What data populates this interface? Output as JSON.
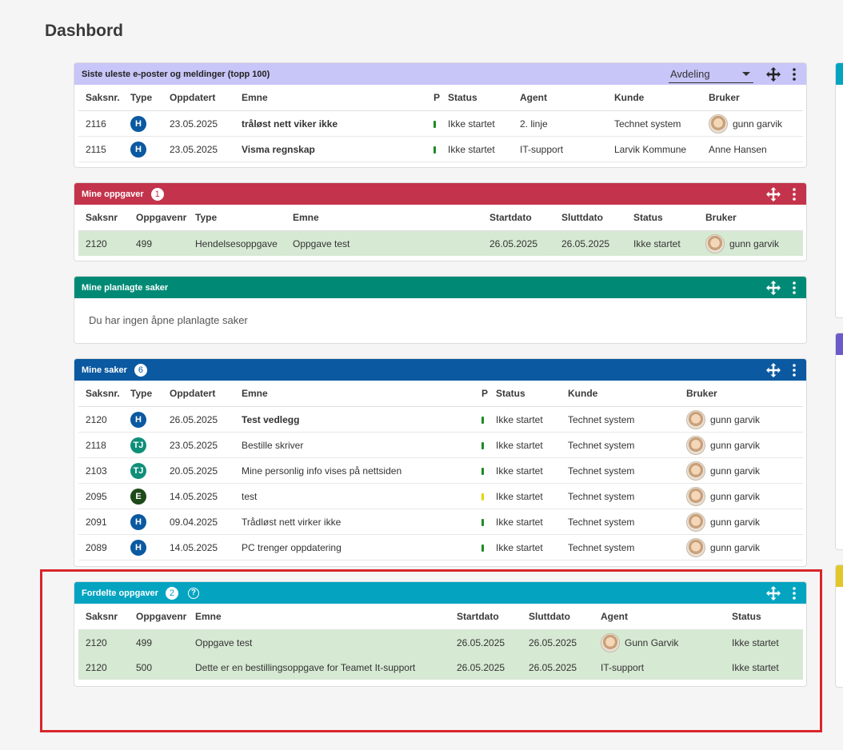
{
  "page": {
    "title": "Dashbord"
  },
  "colors": {
    "purple_header": "#c8c5f8",
    "red_header": "#c3334b",
    "teal_header": "#008a76",
    "blue_header": "#0b59a0",
    "cyan_header": "#04a4c1",
    "badge_H": "#0b59a0",
    "badge_TJ": "#0f8f7a",
    "badge_E": "#1d4a18",
    "prio_green": "#1e8a25",
    "prio_yellow": "#e6d500",
    "highlight": "#d9262b"
  },
  "unread": {
    "title": "Siste uleste e-poster og meldinger (topp 100)",
    "filter_value": "Avdeling",
    "columns": [
      "Saksnr.",
      "Type",
      "Oppdatert",
      "Emne",
      "P",
      "Status",
      "Agent",
      "Kunde",
      "Bruker"
    ],
    "rows": [
      {
        "saksnr": "2116",
        "type": "H",
        "oppdatert": "23.05.2025",
        "emne": "tråløst nett viker ikke",
        "status": "Ikke startet",
        "agent": "2. linje",
        "kunde": "Technet system",
        "bruker": "gunn garvik"
      },
      {
        "saksnr": "2115",
        "type": "H",
        "oppdatert": "23.05.2025",
        "emne": "Visma regnskap",
        "status": "Ikke startet",
        "agent": "IT-support",
        "kunde": "Larvik Kommune",
        "bruker": "Anne Hansen"
      }
    ]
  },
  "tasks": {
    "title": "Mine oppgaver",
    "badge": "1",
    "columns": [
      "Saksnr",
      "Oppgavenr",
      "Type",
      "Emne",
      "Startdato",
      "Sluttdato",
      "Status",
      "Bruker"
    ],
    "rows": [
      {
        "saksnr": "2120",
        "oppgavenr": "499",
        "type": "Hendelsesoppgave",
        "emne": "Oppgave test",
        "startdato": "26.05.2025",
        "sluttdato": "26.05.2025",
        "status": "Ikke startet",
        "bruker": "gunn garvik"
      }
    ]
  },
  "planned": {
    "title": "Mine planlagte saker",
    "empty_message": "Du har ingen åpne planlagte saker"
  },
  "cases": {
    "title": "Mine saker",
    "badge": "6",
    "columns": [
      "Saksnr.",
      "Type",
      "Oppdatert",
      "Emne",
      "P",
      "Status",
      "Kunde",
      "Bruker"
    ],
    "rows": [
      {
        "saksnr": "2120",
        "type": "H",
        "oppdatert": "26.05.2025",
        "emne": "Test vedlegg",
        "status": "Ikke startet",
        "kunde": "Technet system",
        "bruker": "gunn garvik"
      },
      {
        "saksnr": "2118",
        "type": "TJ",
        "oppdatert": "23.05.2025",
        "emne": "Bestille skriver",
        "status": "Ikke startet",
        "kunde": "Technet system",
        "bruker": "gunn garvik"
      },
      {
        "saksnr": "2103",
        "type": "TJ",
        "oppdatert": "20.05.2025",
        "emne": "Mine personlig info vises på nettsiden",
        "status": "Ikke startet",
        "kunde": "Technet system",
        "bruker": "gunn garvik"
      },
      {
        "saksnr": "2095",
        "type": "E",
        "oppdatert": "14.05.2025",
        "emne": "test",
        "status": "Ikke startet",
        "kunde": "Technet system",
        "bruker": "gunn garvik"
      },
      {
        "saksnr": "2091",
        "type": "H",
        "oppdatert": "09.04.2025",
        "emne": "Trådløst nett virker ikke",
        "status": "Ikke startet",
        "kunde": "Technet system",
        "bruker": "gunn garvik"
      },
      {
        "saksnr": "2089",
        "type": "H",
        "oppdatert": "14.05.2025",
        "emne": "PC trenger oppdatering",
        "status": "Ikke startet",
        "kunde": "Technet system",
        "bruker": "gunn garvik"
      }
    ]
  },
  "assigned": {
    "title": "Fordelte oppgaver",
    "badge": "2",
    "help_glyph": "?",
    "columns": [
      "Saksnr",
      "Oppgavenr",
      "Emne",
      "Startdato",
      "Sluttdato",
      "Agent",
      "Status"
    ],
    "rows": [
      {
        "saksnr": "2120",
        "oppgavenr": "499",
        "emne": "Oppgave test",
        "startdato": "26.05.2025",
        "sluttdato": "26.05.2025",
        "agent": "Gunn Garvik",
        "status": "Ikke startet"
      },
      {
        "saksnr": "2120",
        "oppgavenr": "500",
        "emne": "Dette er en bestillingsoppgave for Teamet It-support",
        "startdato": "26.05.2025",
        "sluttdato": "26.05.2025",
        "agent": "IT-support",
        "status": "Ikke startet"
      }
    ]
  }
}
